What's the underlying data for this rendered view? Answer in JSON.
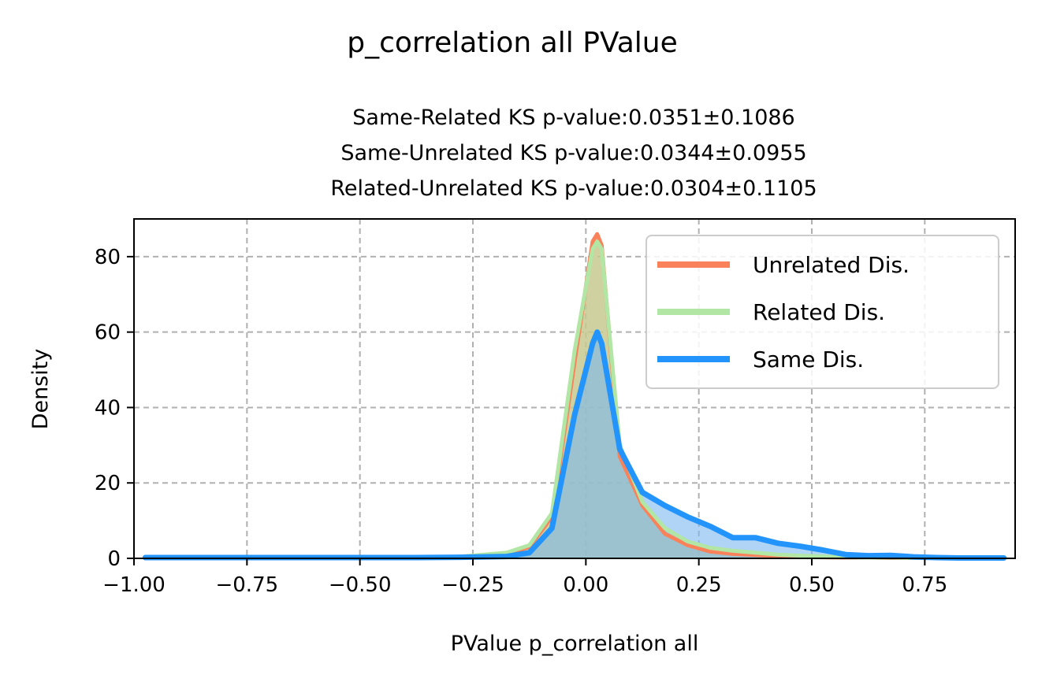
{
  "chart_data": {
    "type": "area",
    "title": "p_correlation all PValue",
    "subtitle_lines": [
      "Same-Related KS p-value:0.0351±0.1086",
      "Same-Unrelated KS p-value:0.0344±0.0955",
      "Related-Unrelated KS p-value:0.0304±0.1105"
    ],
    "xlabel": "PValue p_correlation all",
    "ylabel": "Density",
    "xlim": [
      -1.0,
      0.95
    ],
    "ylim": [
      0,
      90
    ],
    "xticks": [
      -1.0,
      -0.75,
      -0.5,
      -0.25,
      0.0,
      0.25,
      0.5,
      0.75
    ],
    "xtick_labels": [
      "−1.00",
      "−0.75",
      "−0.50",
      "−0.25",
      "0.00",
      "0.25",
      "0.50",
      "0.75"
    ],
    "yticks": [
      0,
      20,
      40,
      60,
      80
    ],
    "ytick_labels": [
      "0",
      "20",
      "40",
      "60",
      "80"
    ],
    "grid": true,
    "legend_position": "upper right",
    "series": [
      {
        "name": "Unrelated Dis.",
        "color": "#f9825a",
        "fill_color": "#f9825a",
        "x": [
          -0.975,
          -0.875,
          -0.775,
          -0.675,
          -0.575,
          -0.475,
          -0.375,
          -0.275,
          -0.175,
          -0.125,
          -0.075,
          -0.025,
          0.015,
          0.025,
          0.035,
          0.075,
          0.125,
          0.175,
          0.225,
          0.275,
          0.325,
          0.375,
          0.425,
          0.475,
          0.525,
          0.575,
          0.625,
          0.675,
          0.725,
          0.775,
          0.825,
          0.875,
          0.925
        ],
        "y": [
          0,
          0,
          0,
          0,
          0,
          0,
          0,
          0.4,
          1.2,
          3.0,
          11.0,
          52.0,
          84.0,
          86.0,
          83.0,
          27.0,
          14.0,
          6.5,
          3.5,
          1.8,
          1.2,
          0.9,
          0.6,
          0.4,
          0.3,
          0.2,
          0.2,
          0.1,
          0.1,
          0.1,
          0,
          0,
          0
        ]
      },
      {
        "name": "Related Dis.",
        "color": "#b2e6a4",
        "fill_color": "#b2e6a4",
        "x": [
          -0.975,
          -0.875,
          -0.775,
          -0.675,
          -0.575,
          -0.475,
          -0.375,
          -0.275,
          -0.175,
          -0.125,
          -0.075,
          -0.025,
          0.015,
          0.025,
          0.035,
          0.075,
          0.125,
          0.175,
          0.225,
          0.275,
          0.325,
          0.375,
          0.425,
          0.475,
          0.525,
          0.575,
          0.625,
          0.675,
          0.725,
          0.775,
          0.825,
          0.875,
          0.925
        ],
        "y": [
          0,
          0,
          0,
          0,
          0,
          0,
          0,
          0.5,
          1.5,
          3.5,
          12.0,
          55.0,
          82.0,
          84.0,
          82.0,
          30.0,
          15.0,
          8.0,
          4.5,
          2.8,
          2.0,
          1.5,
          1.0,
          0.7,
          0.5,
          0.3,
          0.2,
          0.2,
          0.1,
          0.1,
          0,
          0,
          0
        ]
      },
      {
        "name": "Same Dis.",
        "color": "#2394fc",
        "fill_color": "#7ab8f0",
        "x": [
          -0.975,
          -0.875,
          -0.775,
          -0.675,
          -0.575,
          -0.475,
          -0.375,
          -0.275,
          -0.175,
          -0.125,
          -0.075,
          -0.025,
          0.015,
          0.025,
          0.035,
          0.075,
          0.125,
          0.175,
          0.225,
          0.275,
          0.325,
          0.375,
          0.425,
          0.475,
          0.525,
          0.575,
          0.625,
          0.675,
          0.725,
          0.775,
          0.825,
          0.875,
          0.925
        ],
        "y": [
          0.2,
          0.2,
          0.2,
          0.2,
          0.2,
          0.2,
          0.2,
          0.3,
          0.5,
          1.5,
          8.0,
          38.0,
          57.0,
          60.0,
          57.0,
          29.0,
          17.5,
          14.0,
          11.0,
          8.5,
          5.5,
          5.5,
          4.0,
          3.2,
          2.2,
          1.0,
          0.7,
          0.8,
          0.4,
          0.2,
          0.1,
          0.1,
          0.1
        ]
      }
    ]
  }
}
